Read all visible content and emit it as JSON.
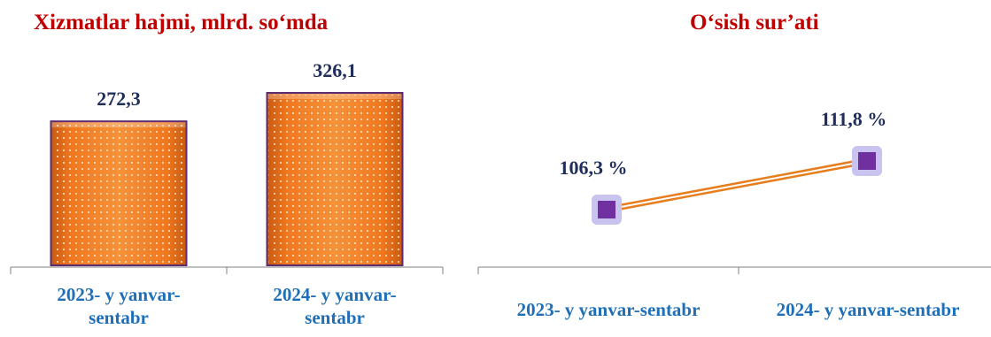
{
  "chart_data": [
    {
      "type": "bar",
      "title": "Xizmatlar hajmi, mlrd. so‘mda",
      "categories": [
        [
          "2023- y yanvar-",
          "sentabr"
        ],
        [
          "2024- y yanvar-",
          "sentabr"
        ]
      ],
      "values": [
        272.3,
        326.1
      ],
      "value_labels": [
        "272,3",
        "326,1"
      ],
      "ylim": [
        0,
        326.1
      ],
      "colors": {
        "bar": "#f07820",
        "bar_dark": "#c85a10",
        "bar_border": "#5b2c6f",
        "title": "#c00000",
        "value": "#1f2d5a",
        "category": "#1f6fb8"
      }
    },
    {
      "type": "line",
      "title": "O‘sish sur’ati",
      "categories": [
        "2023- y yanvar-sentabr",
        "2024- y yanvar-sentabr"
      ],
      "values": [
        106.3,
        111.8
      ],
      "value_labels": [
        "106,3 %",
        "111,8 %"
      ],
      "ylim": [
        100,
        120
      ],
      "colors": {
        "line": "#e87d1e",
        "marker": "#7030a0",
        "marker_halo": "#c9c3f0",
        "title": "#c00000",
        "value": "#1f2d5a",
        "category": "#1f6fb8"
      }
    }
  ]
}
